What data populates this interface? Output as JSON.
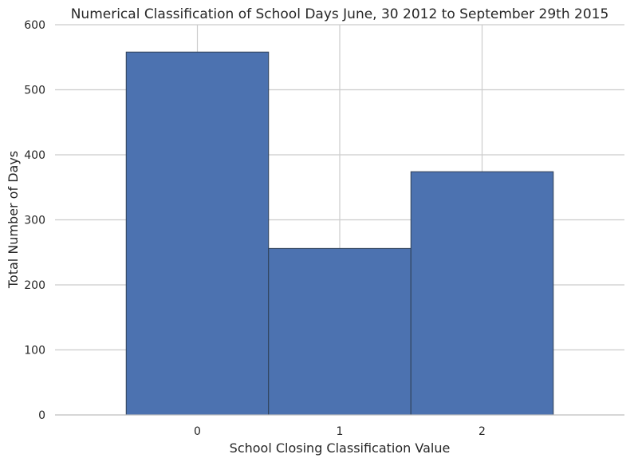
{
  "chart_data": {
    "type": "bar",
    "title": "Numerical Classification of School Days June, 30 2012 to September 29th 2015",
    "xlabel": "School Closing Classification Value",
    "ylabel": "Total Number of Days",
    "categories": [
      "0",
      "1",
      "2"
    ],
    "values": [
      558,
      256,
      374
    ],
    "ylim": [
      0,
      600
    ],
    "xlim": [
      -1,
      3
    ],
    "yticks": [
      0,
      100,
      200,
      300,
      400,
      500,
      600
    ],
    "grid": true,
    "bar_color": "#4c72b0",
    "edge_color": "#2f3f55"
  }
}
